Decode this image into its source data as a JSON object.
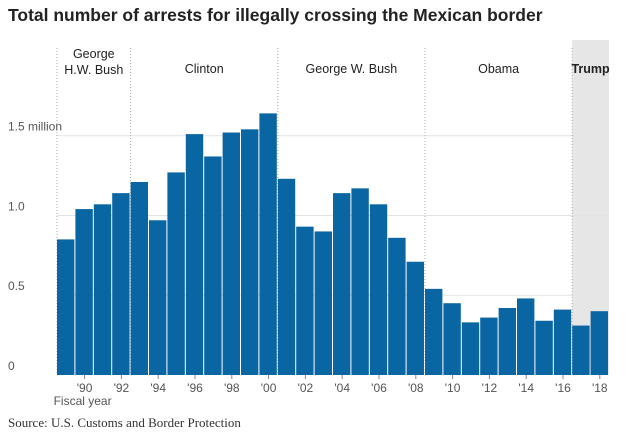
{
  "chart_data": {
    "type": "bar",
    "title": "Total number of arrests for illegally crossing the Mexican border",
    "xlabel": "Fiscal year",
    "ylabel": "",
    "ylim": [
      0,
      2.1
    ],
    "x": [
      1989,
      1990,
      1991,
      1992,
      1993,
      1994,
      1995,
      1996,
      1997,
      1998,
      1999,
      2000,
      2001,
      2002,
      2003,
      2004,
      2005,
      2006,
      2007,
      2008,
      2009,
      2010,
      2011,
      2012,
      2013,
      2014,
      2015,
      2016,
      2017,
      2018
    ],
    "values": [
      0.85,
      1.04,
      1.07,
      1.14,
      1.21,
      0.97,
      1.27,
      1.51,
      1.37,
      1.52,
      1.54,
      1.64,
      1.23,
      0.93,
      0.9,
      1.14,
      1.17,
      1.07,
      0.86,
      0.71,
      0.54,
      0.45,
      0.33,
      0.36,
      0.42,
      0.48,
      0.34,
      0.41,
      0.31,
      0.4
    ],
    "x_ticks": [
      {
        "year": 1990,
        "label": "'90"
      },
      {
        "year": 1992,
        "label": "'92"
      },
      {
        "year": 1994,
        "label": "'94"
      },
      {
        "year": 1996,
        "label": "'96"
      },
      {
        "year": 1998,
        "label": "'98"
      },
      {
        "year": 2000,
        "label": "'00"
      },
      {
        "year": 2002,
        "label": "'02"
      },
      {
        "year": 2004,
        "label": "'04"
      },
      {
        "year": 2006,
        "label": "'06"
      },
      {
        "year": 2008,
        "label": "'08"
      },
      {
        "year": 2010,
        "label": "'10"
      },
      {
        "year": 2012,
        "label": "'12"
      },
      {
        "year": 2014,
        "label": "'14"
      },
      {
        "year": 2016,
        "label": "'16"
      },
      {
        "year": 2018,
        "label": "'18"
      }
    ],
    "y_ticks": [
      {
        "value": 0,
        "label": "0"
      },
      {
        "value": 0.5,
        "label": "0.5"
      },
      {
        "value": 1.0,
        "label": "1.0"
      },
      {
        "value": 1.5,
        "label": "1.5 million"
      }
    ],
    "presidencies": [
      {
        "lines": [
          "George",
          "H.W. Bush"
        ],
        "start": 1989,
        "end": 1993
      },
      {
        "lines": [
          "Clinton"
        ],
        "start": 1993,
        "end": 2001
      },
      {
        "lines": [
          "George W. Bush"
        ],
        "start": 2001,
        "end": 2009
      },
      {
        "lines": [
          "Obama"
        ],
        "start": 2009,
        "end": 2017
      },
      {
        "lines": [
          "Trump"
        ],
        "start": 2017,
        "end": 2019,
        "highlight": true
      }
    ],
    "grid": true,
    "legend": "none"
  },
  "source": "Source: U.S. Customs and Border Protection",
  "colors": {
    "bar": "#0a66a2",
    "highlight_band": "#e6e6e6",
    "gridline": "#e3e3e3",
    "divider": "#a8a8a8"
  }
}
